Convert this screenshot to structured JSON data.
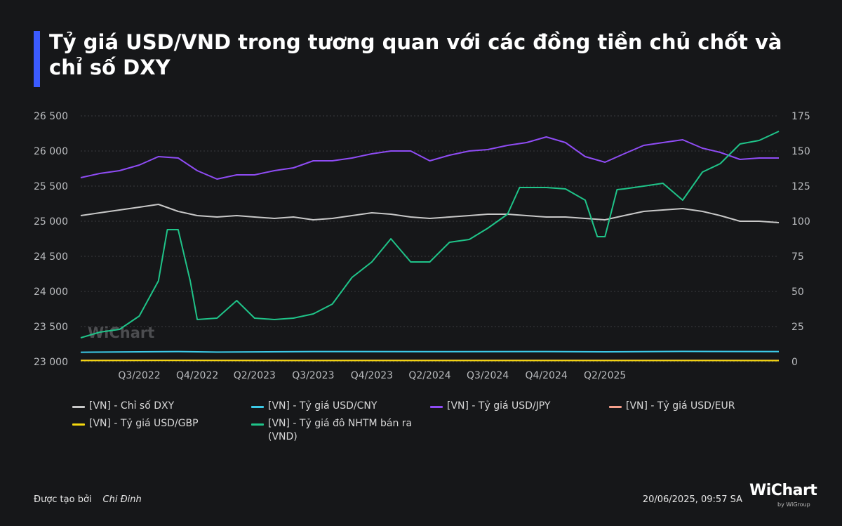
{
  "title": "Tỷ giá USD/VND trong tương quan với các đồng tiền chủ chốt và chỉ số DXY",
  "watermark": "WiChart",
  "footer": {
    "created_by_label": "Được tạo bởi",
    "author": "Chi Đinh",
    "timestamp": "20/06/2025, 09:57 SA",
    "logo": "WiChart",
    "logo_sub": "by WiGroup"
  },
  "colors": {
    "background": "#161719",
    "accent": "#3b5bff",
    "grid": "#3a3b3e",
    "axis_text": "#b9bbbe"
  },
  "chart_data": {
    "type": "line",
    "x_start": "2022-06",
    "x_end": "2025-06",
    "x_ticks": [
      {
        "label": "Q3/2022",
        "date": "2022-09"
      },
      {
        "label": "Q4/2022",
        "date": "2022-12"
      },
      {
        "label": "Q2/2023",
        "date": "2023-03"
      },
      {
        "label": "Q3/2023",
        "date": "2023-06"
      },
      {
        "label": "Q4/2023",
        "date": "2023-09"
      },
      {
        "label": "Q2/2024",
        "date": "2023-12"
      },
      {
        "label": "Q3/2024",
        "date": "2024-03"
      },
      {
        "label": "Q4/2024",
        "date": "2024-06"
      },
      {
        "label": "Q2/2025",
        "date": "2024-09"
      }
    ],
    "y_left": {
      "min": 23000,
      "max": 26500,
      "ticks": [
        23000,
        23500,
        24000,
        24500,
        25000,
        25500,
        26000,
        26500
      ],
      "tick_labels": [
        "23 000",
        "23 500",
        "24 000",
        "24 500",
        "25 000",
        "25 500",
        "26 000",
        "26 500"
      ]
    },
    "y_right": {
      "min": 0,
      "max": 175,
      "ticks": [
        0,
        25,
        50,
        75,
        100,
        125,
        150,
        175
      ],
      "tick_labels": [
        "0",
        "25",
        "50",
        "75",
        "100",
        "125",
        "150",
        "175"
      ]
    },
    "grid": true,
    "legend_position": "bottom",
    "series": [
      {
        "name": "[VN] - Chỉ số DXY",
        "color": "#c8c8c8",
        "axis": "right",
        "points": [
          [
            "2022-06",
            104
          ],
          [
            "2022-07",
            106
          ],
          [
            "2022-08",
            108
          ],
          [
            "2022-09",
            110
          ],
          [
            "2022-10",
            112
          ],
          [
            "2022-11",
            107
          ],
          [
            "2022-12",
            104
          ],
          [
            "2023-01",
            103
          ],
          [
            "2023-02",
            104
          ],
          [
            "2023-03",
            103
          ],
          [
            "2023-04",
            102
          ],
          [
            "2023-05",
            103
          ],
          [
            "2023-06",
            101
          ],
          [
            "2023-07",
            102
          ],
          [
            "2023-08",
            104
          ],
          [
            "2023-09",
            106
          ],
          [
            "2023-10",
            105
          ],
          [
            "2023-11",
            103
          ],
          [
            "2023-12",
            102
          ],
          [
            "2024-01",
            103
          ],
          [
            "2024-02",
            104
          ],
          [
            "2024-03",
            105
          ],
          [
            "2024-04",
            105
          ],
          [
            "2024-05",
            104
          ],
          [
            "2024-06",
            103
          ],
          [
            "2024-07",
            103
          ],
          [
            "2024-08",
            102
          ],
          [
            "2024-09",
            101
          ],
          [
            "2024-10",
            104
          ],
          [
            "2024-11",
            107
          ],
          [
            "2024-12",
            108
          ],
          [
            "2025-01",
            109
          ],
          [
            "2025-02",
            107
          ],
          [
            "2025-03",
            104
          ],
          [
            "2025-04",
            100
          ],
          [
            "2025-05",
            100
          ],
          [
            "2025-06",
            99
          ]
        ]
      },
      {
        "name": "[VN] - Tỷ giá USD/CNY",
        "color": "#3cc9e6",
        "axis": "right",
        "points": [
          [
            "2022-06",
            6.7
          ],
          [
            "2022-09",
            7.0
          ],
          [
            "2022-11",
            7.2
          ],
          [
            "2023-01",
            6.8
          ],
          [
            "2023-06",
            7.2
          ],
          [
            "2023-12",
            7.1
          ],
          [
            "2024-06",
            7.2
          ],
          [
            "2024-09",
            7.0
          ],
          [
            "2025-01",
            7.3
          ],
          [
            "2025-06",
            7.2
          ]
        ]
      },
      {
        "name": "[VN] - Tỷ giá USD/JPY",
        "color": "#8f4cf5",
        "axis": "right",
        "points": [
          [
            "2022-06",
            131
          ],
          [
            "2022-07",
            134
          ],
          [
            "2022-08",
            136
          ],
          [
            "2022-09",
            140
          ],
          [
            "2022-10",
            146
          ],
          [
            "2022-11",
            145
          ],
          [
            "2022-12",
            136
          ],
          [
            "2023-01",
            130
          ],
          [
            "2023-02",
            133
          ],
          [
            "2023-03",
            133
          ],
          [
            "2023-04",
            136
          ],
          [
            "2023-05",
            138
          ],
          [
            "2023-06",
            143
          ],
          [
            "2023-07",
            143
          ],
          [
            "2023-08",
            145
          ],
          [
            "2023-09",
            148
          ],
          [
            "2023-10",
            150
          ],
          [
            "2023-11",
            150
          ],
          [
            "2023-12",
            143
          ],
          [
            "2024-01",
            147
          ],
          [
            "2024-02",
            150
          ],
          [
            "2024-03",
            151
          ],
          [
            "2024-04",
            154
          ],
          [
            "2024-05",
            156
          ],
          [
            "2024-06",
            160
          ],
          [
            "2024-07",
            156
          ],
          [
            "2024-08",
            146
          ],
          [
            "2024-09",
            142
          ],
          [
            "2024-10",
            148
          ],
          [
            "2024-11",
            154
          ],
          [
            "2024-12",
            156
          ],
          [
            "2025-01",
            158
          ],
          [
            "2025-02",
            152
          ],
          [
            "2025-03",
            149
          ],
          [
            "2025-04",
            144
          ],
          [
            "2025-05",
            145
          ],
          [
            "2025-06",
            145
          ]
        ]
      },
      {
        "name": "[VN] - Tỷ giá USD/EUR",
        "color": "#f5a08c",
        "axis": "right",
        "points": [
          [
            "2022-06",
            0.95
          ],
          [
            "2022-10",
            1.01
          ],
          [
            "2023-06",
            0.92
          ],
          [
            "2024-06",
            0.93
          ],
          [
            "2025-01",
            0.97
          ],
          [
            "2025-06",
            0.87
          ]
        ]
      },
      {
        "name": "[VN] - Tỷ giá USD/GBP",
        "color": "#f5d80e",
        "axis": "right",
        "points": [
          [
            "2022-06",
            0.82
          ],
          [
            "2022-10",
            0.9
          ],
          [
            "2023-06",
            0.79
          ],
          [
            "2024-06",
            0.79
          ],
          [
            "2025-01",
            0.81
          ],
          [
            "2025-06",
            0.74
          ]
        ]
      },
      {
        "name": "[VN] - Tỷ giá đô NHTM bán ra (VND)",
        "color": "#1fc489",
        "axis": "left",
        "points": [
          [
            "2022-06",
            23340
          ],
          [
            "2022-07",
            23420
          ],
          [
            "2022-08",
            23460
          ],
          [
            "2022-09",
            23650
          ],
          [
            "2022-10",
            24150
          ],
          [
            "2022-10-15",
            24880
          ],
          [
            "2022-11",
            24880
          ],
          [
            "2022-11-20",
            24150
          ],
          [
            "2022-12",
            23600
          ],
          [
            "2023-01",
            23620
          ],
          [
            "2023-02",
            23870
          ],
          [
            "2023-03",
            23620
          ],
          [
            "2023-04",
            23600
          ],
          [
            "2023-05",
            23620
          ],
          [
            "2023-06",
            23680
          ],
          [
            "2023-07",
            23820
          ],
          [
            "2023-08",
            24200
          ],
          [
            "2023-09",
            24420
          ],
          [
            "2023-10",
            24750
          ],
          [
            "2023-11",
            24420
          ],
          [
            "2023-12",
            24420
          ],
          [
            "2024-01",
            24700
          ],
          [
            "2024-02",
            24740
          ],
          [
            "2024-03",
            24900
          ],
          [
            "2024-04",
            25100
          ],
          [
            "2024-04-20",
            25480
          ],
          [
            "2024-05",
            25480
          ],
          [
            "2024-06",
            25480
          ],
          [
            "2024-07",
            25460
          ],
          [
            "2024-08",
            25300
          ],
          [
            "2024-08-20",
            24780
          ],
          [
            "2024-09",
            24780
          ],
          [
            "2024-09-20",
            25450
          ],
          [
            "2024-10",
            25460
          ],
          [
            "2024-11",
            25500
          ],
          [
            "2024-12",
            25540
          ],
          [
            "2025-01",
            25300
          ],
          [
            "2025-02",
            25700
          ],
          [
            "2025-03",
            25820
          ],
          [
            "2025-04",
            26100
          ],
          [
            "2025-05",
            26150
          ],
          [
            "2025-06",
            26280
          ]
        ]
      }
    ]
  },
  "legend": [
    {
      "label": "[VN] - Chỉ số DXY",
      "color": "#c8c8c8"
    },
    {
      "label": "[VN] - Tỷ giá USD/CNY",
      "color": "#3cc9e6"
    },
    {
      "label": "[VN] - Tỷ giá USD/JPY",
      "color": "#8f4cf5"
    },
    {
      "label": "[VN] - Tỷ giá USD/EUR",
      "color": "#f5a08c"
    },
    {
      "label": "[VN] - Tỷ giá USD/GBP",
      "color": "#f5d80e"
    },
    {
      "label": "[VN] - Tỷ giá đô NHTM bán ra (VND)",
      "color": "#1fc489"
    }
  ]
}
